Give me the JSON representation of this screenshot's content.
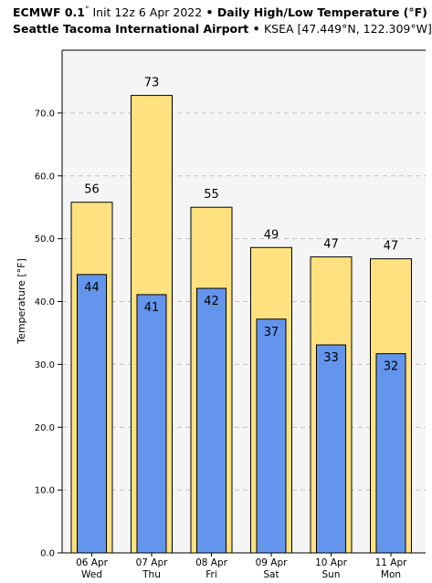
{
  "header": {
    "model": "ECMWF 0.1",
    "degree": "°",
    "init": " Init 12z 6 Apr 2022",
    "sep1": " • ",
    "title": "Daily High/Low Temperature (°F)",
    "airport": "Seattle Tacoma International Airport",
    "sep2": " • ",
    "station": "KSEA [47.449°N, 122.309°W]"
  },
  "chart_data": {
    "type": "bar",
    "title": "Daily High/Low Temperature (°F)",
    "ylabel": "Temperature [°F]",
    "xlabel": "",
    "ylim": [
      0,
      80
    ],
    "yticks": [
      0,
      10,
      20,
      30,
      40,
      50,
      60,
      70
    ],
    "ytick_labels": [
      "0.0",
      "10.0",
      "20.0",
      "30.0",
      "40.0",
      "50.0",
      "60.0",
      "70.0"
    ],
    "grid": true,
    "categories": [
      "06 Apr",
      "07 Apr",
      "08 Apr",
      "09 Apr",
      "10 Apr",
      "11 Apr"
    ],
    "weekdays": [
      "Wed",
      "Thu",
      "Fri",
      "Sat",
      "Sun",
      "Mon"
    ],
    "series": [
      {
        "values": [
          55.8,
          72.8,
          55.0,
          48.6,
          47.1,
          46.8
        ],
        "labels": [
          "56",
          "73",
          "55",
          "49",
          "47",
          "47"
        ],
        "color": "#ffe180"
      },
      {
        "values": [
          44.3,
          41.1,
          42.1,
          37.2,
          33.1,
          31.7
        ],
        "labels": [
          "44",
          "41",
          "42",
          "37",
          "33",
          "32"
        ],
        "color": "#6495ed"
      }
    ],
    "colors": {
      "plot_bg": "#f5f5f5",
      "grid": "#c0c0c0",
      "outline": "#000000"
    }
  }
}
